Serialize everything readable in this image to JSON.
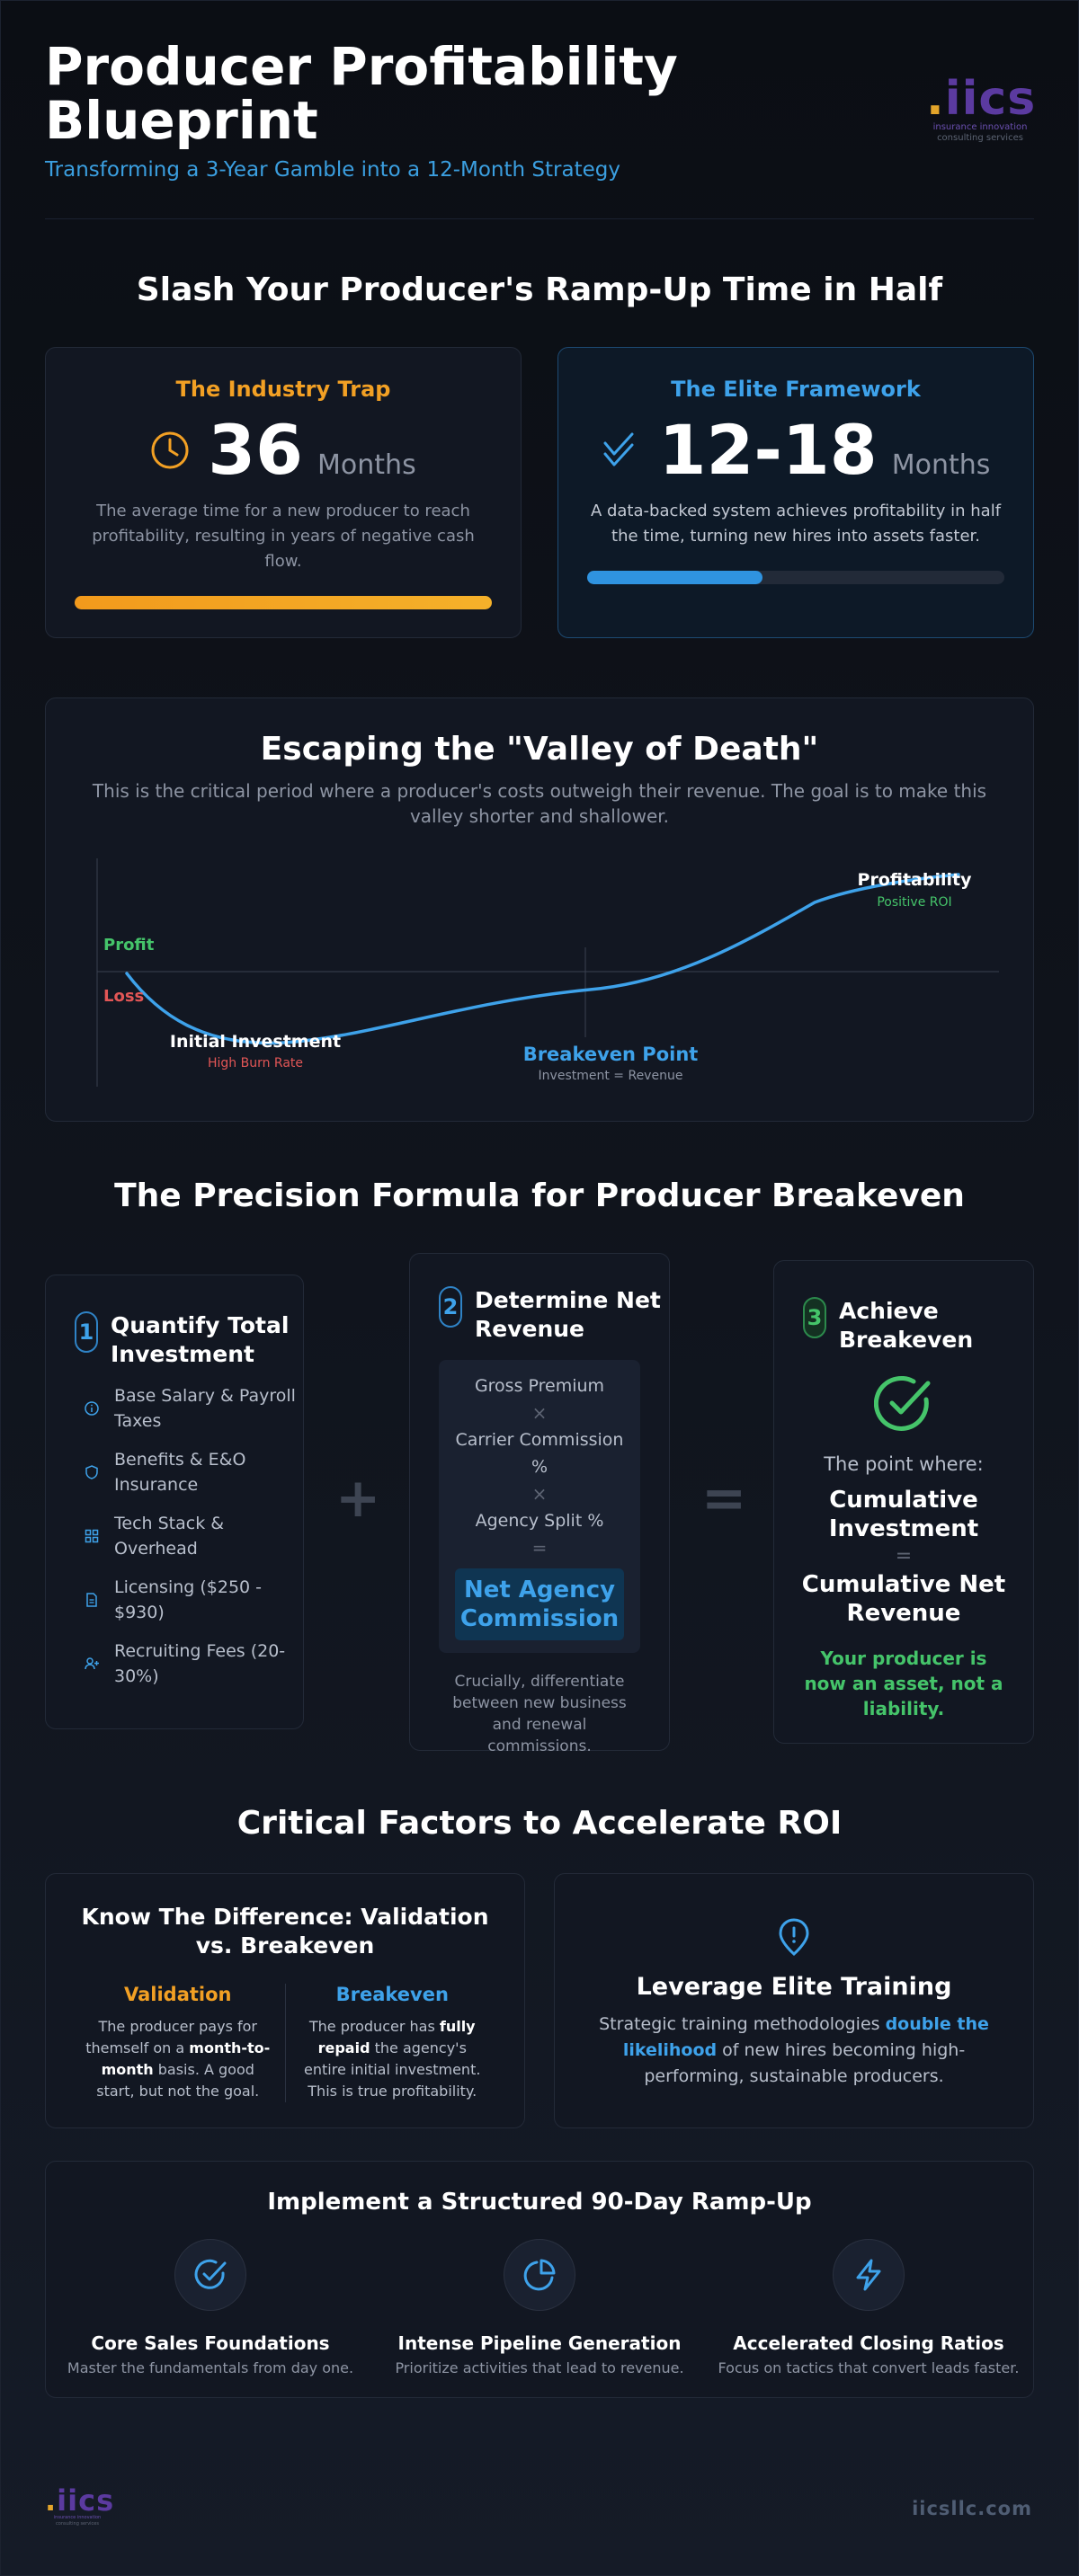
{
  "header": {
    "title": "Producer Profitability Blueprint",
    "subtitle": "Transforming a 3-Year Gamble into a 12-Month Strategy",
    "logo_mark": "iics",
    "logo_line1": "insurance innovation",
    "logo_line2": "consulting services"
  },
  "rampup": {
    "title": "Slash Your Producer's Ramp-Up Time in Half",
    "trap": {
      "heading": "The Industry Trap",
      "number": "36",
      "unit": "Months",
      "description": "The average time for a new producer to reach profitability, resulting in years of negative cash flow.",
      "bar_fill": 1.0,
      "color": "#f2a024"
    },
    "elite": {
      "heading": "The Elite Framework",
      "number": "12-18",
      "unit": "Months",
      "description": "A data-backed system achieves profitability in half the time, turning new hires into assets faster.",
      "bar_fill": 0.42,
      "color": "#3ea2ea"
    }
  },
  "valley": {
    "title": "Escaping the \"Valley of Death\"",
    "description": "This is the critical period where a producer's costs outweigh their revenue. The goal is to make this valley shorter and shallower.",
    "profit_label": "Profit",
    "loss_label": "Loss",
    "initial_label": "Initial Investment",
    "initial_sub": "High Burn Rate",
    "breakeven_label": "Breakeven Point",
    "breakeven_sub": "Investment = Revenue",
    "profitability_label": "Profitability",
    "profitability_sub": "Positive ROI"
  },
  "formula": {
    "title": "The Precision Formula for Producer Breakeven",
    "step1": {
      "number": "1",
      "title": "Quantify Total Investment",
      "items": [
        {
          "label": "Base Salary & Payroll Taxes",
          "icon": "dollar-circle-icon"
        },
        {
          "label": "Benefits & E&O Insurance",
          "icon": "shield-icon"
        },
        {
          "label": "Tech Stack & Overhead",
          "icon": "grid-icon"
        },
        {
          "label": "Licensing ($250 - $930)",
          "icon": "document-icon"
        },
        {
          "label": "Recruiting Fees (20-30%)",
          "icon": "user-plus-icon"
        }
      ]
    },
    "plus": "+",
    "step2": {
      "number": "2",
      "title": "Determine Net Revenue",
      "gross": "Gross Premium",
      "times1": "×",
      "carrier": "Carrier Commission %",
      "times2": "×",
      "split": "Agency Split %",
      "equals": "=",
      "result": "Net Agency Commission",
      "note": "Crucially, differentiate between new business and renewal commissions."
    },
    "equals": "=",
    "step3": {
      "number": "3",
      "title": "Achieve Breakeven",
      "point": "The point where:",
      "cumulative_investment": "Cumulative Investment",
      "eq": "=",
      "cumulative_revenue": "Cumulative Net Revenue",
      "conclusion": "Your producer is now an asset, not a liability."
    }
  },
  "critical": {
    "title": "Critical Factors to Accelerate ROI",
    "difference": {
      "heading": "Know The Difference: Validation vs. Breakeven",
      "validation_h": "Validation",
      "validation_t1": "The producer pays for themself on a ",
      "validation_b": "month-to-month",
      "validation_t2": " basis. A good start, but not the goal.",
      "breakeven_h": "Breakeven",
      "breakeven_t1": "The producer has ",
      "breakeven_b": "fully repaid",
      "breakeven_t2": " the agency's entire initial investment. This is true profitability."
    },
    "training": {
      "heading": "Leverage Elite Training",
      "t1": "Strategic training methodologies ",
      "b": "double the likelihood",
      "t2": " of new hires becoming high-performing, sustainable producers."
    },
    "ramp": {
      "heading": "Implement a Structured 90-Day Ramp-Up",
      "items": [
        {
          "title": "Core Sales Foundations",
          "text": "Master the fundamentals from day one.",
          "icon": "check-circle-icon"
        },
        {
          "title": "Intense Pipeline Generation",
          "text": "Prioritize activities that lead to revenue.",
          "icon": "pie-chart-icon"
        },
        {
          "title": "Accelerated Closing Ratios",
          "text": "Focus on tactics that convert leads faster.",
          "icon": "lightning-icon"
        }
      ]
    }
  },
  "footer": {
    "url": "iicsllc.com"
  }
}
